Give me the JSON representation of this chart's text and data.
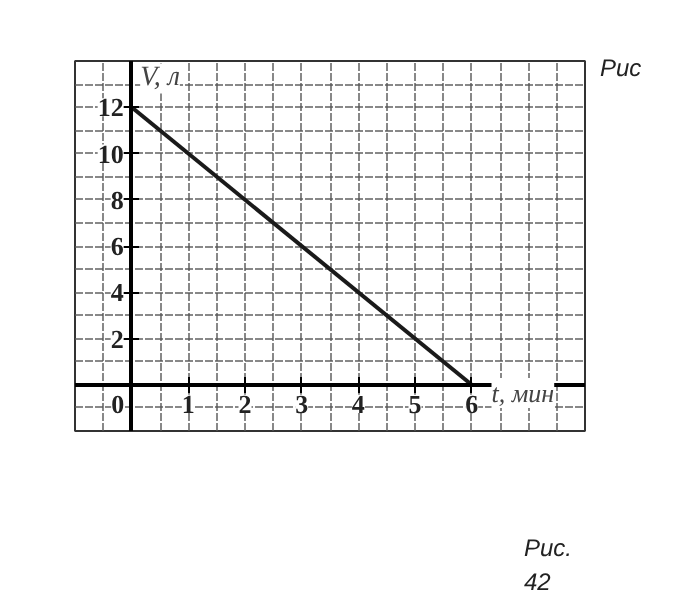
{
  "chart_data": {
    "type": "line",
    "xlabel": "t, мин",
    "ylabel": "V, л",
    "x": [
      0,
      6
    ],
    "values": [
      12,
      0
    ],
    "color": "#1a1a1a",
    "xlim": [
      -1,
      8
    ],
    "ylim": [
      -2,
      14
    ],
    "xticks": [
      0,
      1,
      2,
      3,
      4,
      5,
      6
    ],
    "yticks": [
      2,
      4,
      6,
      8,
      10,
      12
    ],
    "grid": true,
    "marker": "none",
    "line_style": "solid",
    "annotations": [
      "Рис",
      "Рис. 42"
    ]
  }
}
